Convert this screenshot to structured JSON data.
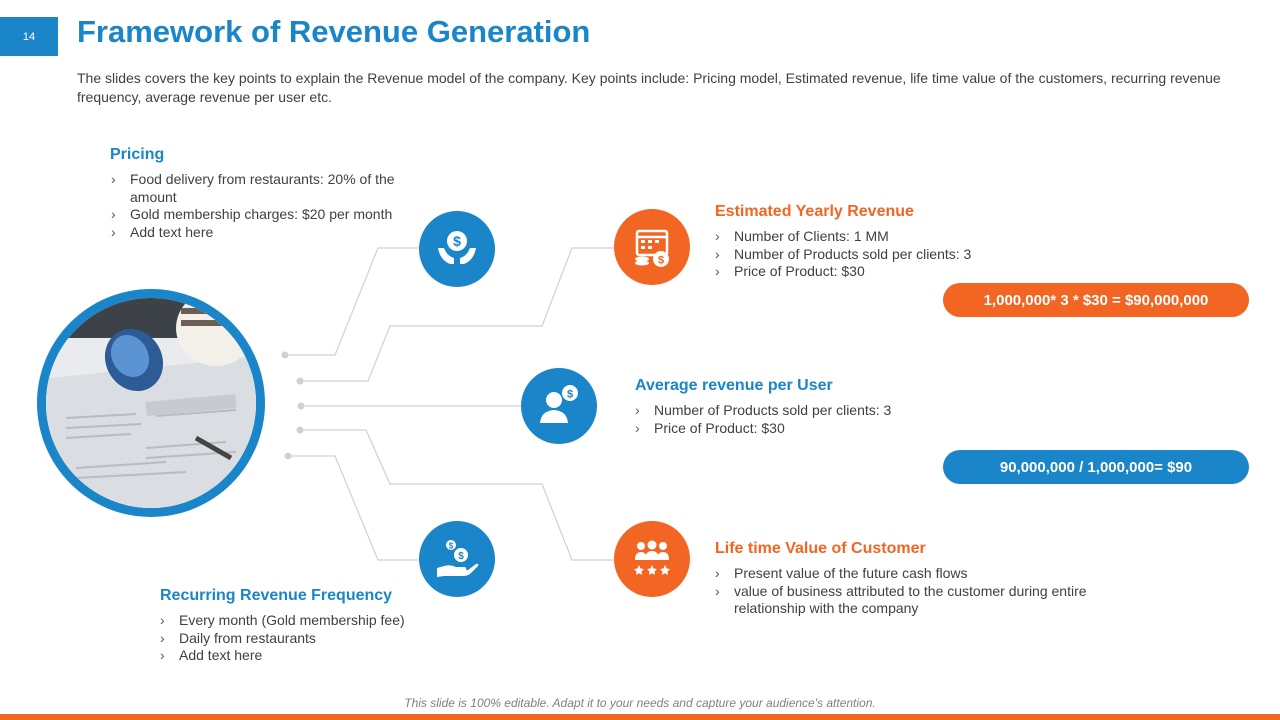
{
  "slide_number": "14",
  "title": "Framework of Revenue Generation",
  "subtitle": "The slides covers the key points to explain the Revenue model of the company. Key points include: Pricing model, Estimated revenue, life time value of the customers, recurring revenue frequency, average revenue per user etc.",
  "colors": {
    "blue": "#1a85c8",
    "orange": "#f26522"
  },
  "pricing": {
    "title": "Pricing",
    "icon": "money-hands-icon",
    "items": [
      "Food delivery from restaurants: 20% of the amount",
      "Gold membership charges: $20 per month",
      "Add text here"
    ]
  },
  "estimated_revenue": {
    "title": "Estimated Yearly Revenue",
    "icon": "calendar-coins-icon",
    "items": [
      "Number of Clients: 1 MM",
      "Number of Products sold per clients: 3",
      "Price of Product: $30"
    ],
    "formula": "1,000,000* 3 * $30 = $90,000,000"
  },
  "arpu": {
    "title": "Average revenue per User",
    "icon": "user-dollar-icon",
    "items": [
      "Number of Products sold per clients: 3",
      "Price of Product: $30"
    ],
    "formula": "90,000,000 / 1,000,000= $90"
  },
  "ltv": {
    "title": "Life time Value of Customer",
    "icon": "group-stars-icon",
    "items": [
      "Present value of the future cash flows",
      "value of business attributed to the customer during entire relationship with the company"
    ]
  },
  "recurring": {
    "title": "Recurring Revenue Frequency",
    "icon": "hand-coins-icon",
    "items": [
      "Every month (Gold membership fee)",
      "Daily from restaurants",
      "Add text here"
    ]
  },
  "footer_note": "This slide is 100% editable. Adapt it to your needs and capture your audience's attention."
}
